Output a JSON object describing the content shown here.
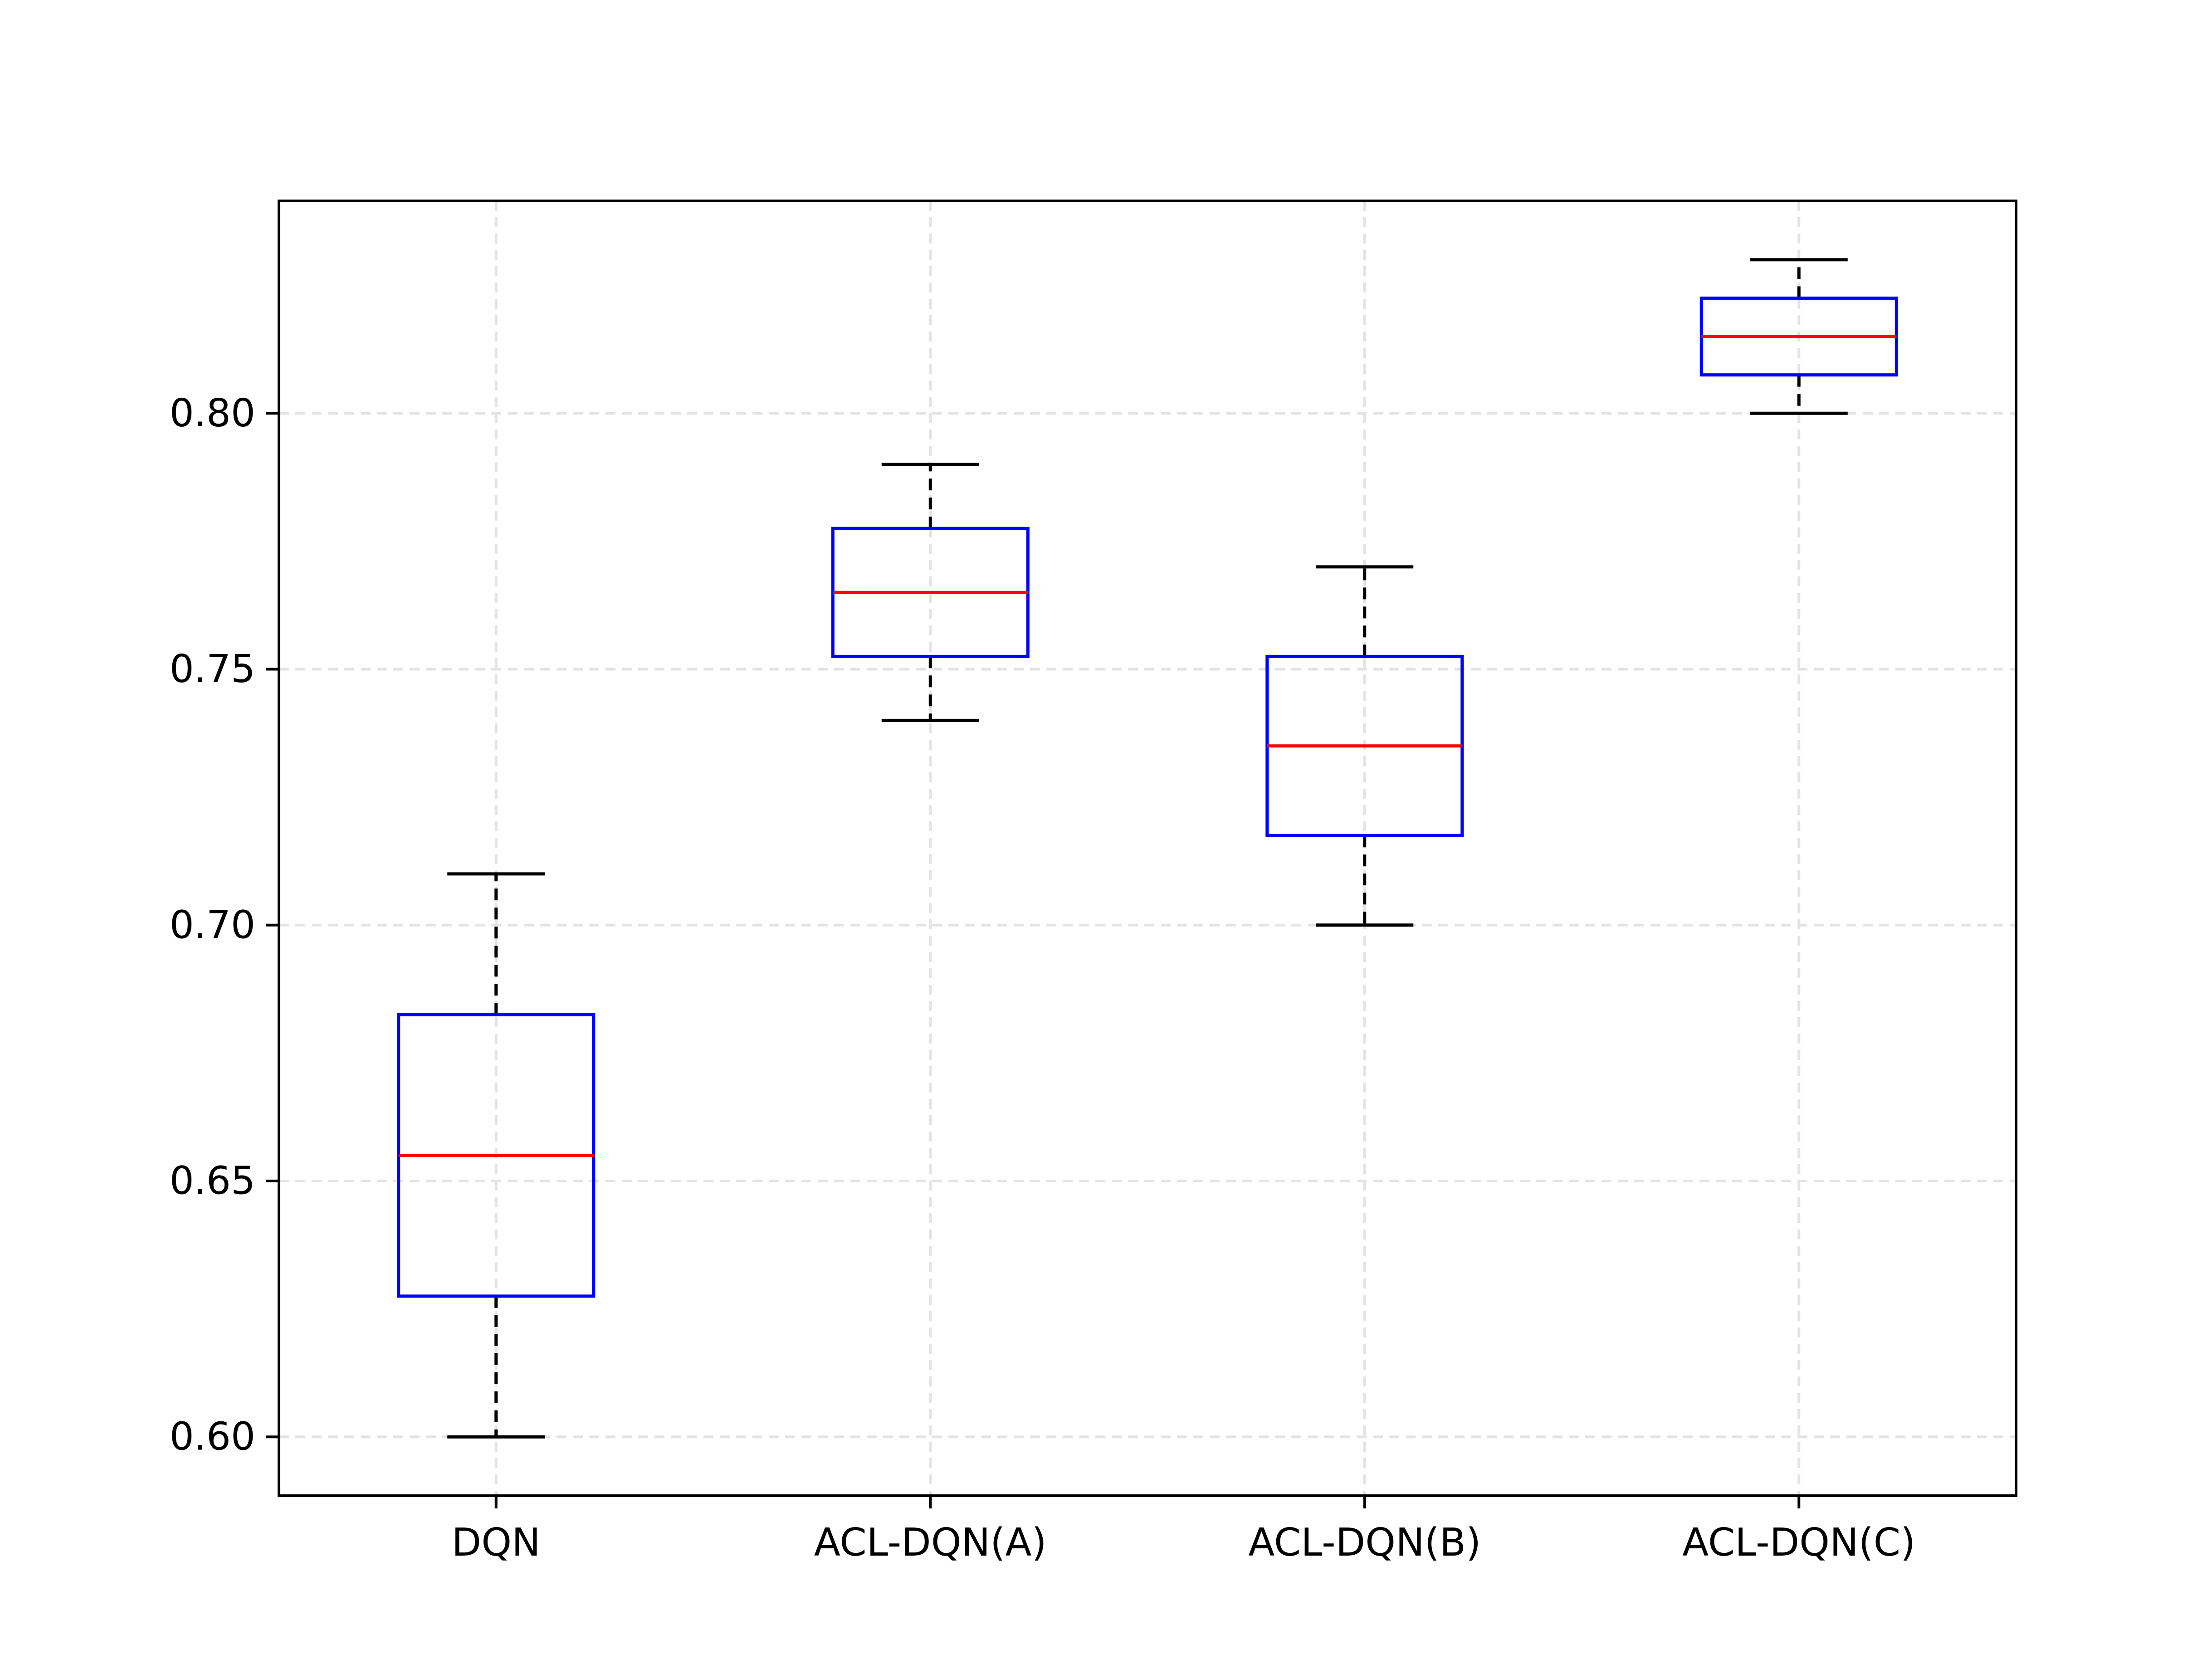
{
  "chart_data": {
    "type": "boxplot",
    "title": "",
    "xlabel": "",
    "ylabel": "",
    "categories": [
      "DQN",
      "ACL-DQN(A)",
      "ACL-DQN(B)",
      "ACL-DQN(C)"
    ],
    "boxes": [
      {
        "name": "DQN",
        "whisker_low": 0.6,
        "q1": 0.6275,
        "median": 0.655,
        "q3": 0.6825,
        "whisker_high": 0.71
      },
      {
        "name": "ACL-DQN(A)",
        "whisker_low": 0.74,
        "q1": 0.7525,
        "median": 0.765,
        "q3": 0.7775,
        "whisker_high": 0.79
      },
      {
        "name": "ACL-DQN(B)",
        "whisker_low": 0.7,
        "q1": 0.7175,
        "median": 0.735,
        "q3": 0.7525,
        "whisker_high": 0.77
      },
      {
        "name": "ACL-DQN(C)",
        "whisker_low": 0.8,
        "q1": 0.8075,
        "median": 0.815,
        "q3": 0.8225,
        "whisker_high": 0.83
      }
    ],
    "ylim": [
      0.5885,
      0.8415
    ],
    "yticks": [
      0.6,
      0.65,
      0.7,
      0.75,
      0.8
    ],
    "ytick_labels": [
      "0.60",
      "0.65",
      "0.70",
      "0.75",
      "0.80"
    ],
    "grid": true,
    "grid_style": "dashed",
    "colors": {
      "box": "#0000ff",
      "median": "#ff0000",
      "whisker": "#000000",
      "grid": "#e3e3e3",
      "axes": "#000000"
    }
  }
}
